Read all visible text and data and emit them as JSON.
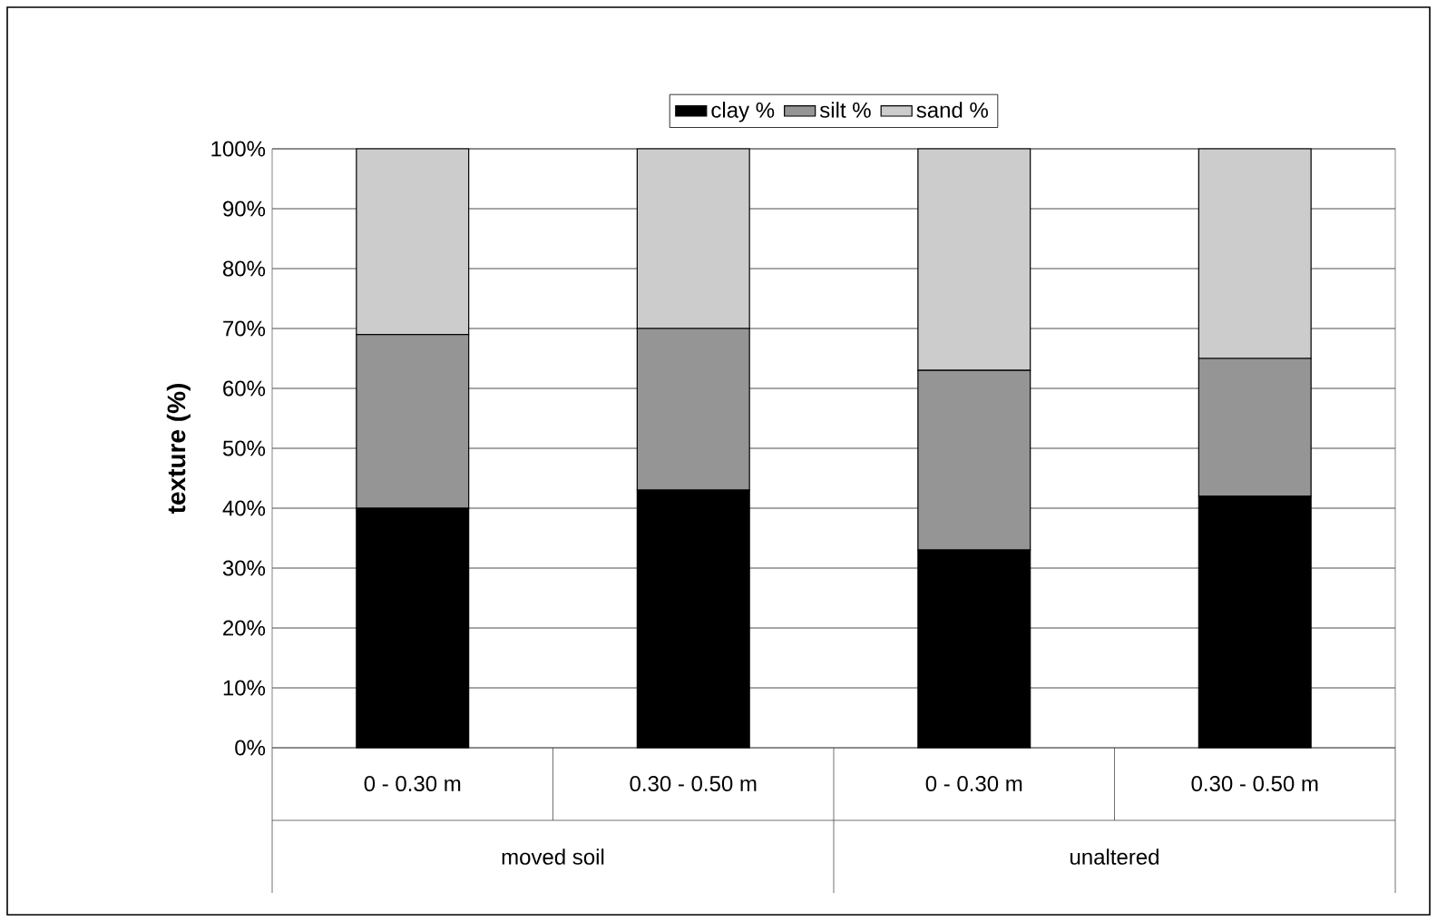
{
  "chart_data": {
    "type": "bar",
    "stacked": true,
    "ylabel": "texture (%)",
    "categories": [
      "0 - 0.30 m",
      "0.30 - 0.50 m",
      "0 - 0.30 m",
      "0.30 - 0.50 m"
    ],
    "annotations": [
      "moved soil",
      "unaltered"
    ],
    "series": [
      {
        "name": "clay %",
        "color": "#000000",
        "values": [
          40,
          43,
          33,
          42
        ]
      },
      {
        "name": "silt %",
        "color": "#959595",
        "values": [
          29,
          27,
          30,
          23
        ]
      },
      {
        "name": "sand %",
        "color": "#cccccc",
        "values": [
          31,
          30,
          37,
          35
        ]
      }
    ],
    "ylim": [
      0,
      100
    ],
    "yticks": [
      {
        "value": 0,
        "label": "0%"
      },
      {
        "value": 10,
        "label": "10%"
      },
      {
        "value": 20,
        "label": "20%"
      },
      {
        "value": 30,
        "label": "30%"
      },
      {
        "value": 40,
        "label": "40%"
      },
      {
        "value": 50,
        "label": "50%"
      },
      {
        "value": 60,
        "label": "60%"
      },
      {
        "value": 70,
        "label": "70%"
      },
      {
        "value": 80,
        "label": "80%"
      },
      {
        "value": 90,
        "label": "90%"
      },
      {
        "value": 100,
        "label": "100%"
      }
    ],
    "grid": "y",
    "legend": "top"
  }
}
